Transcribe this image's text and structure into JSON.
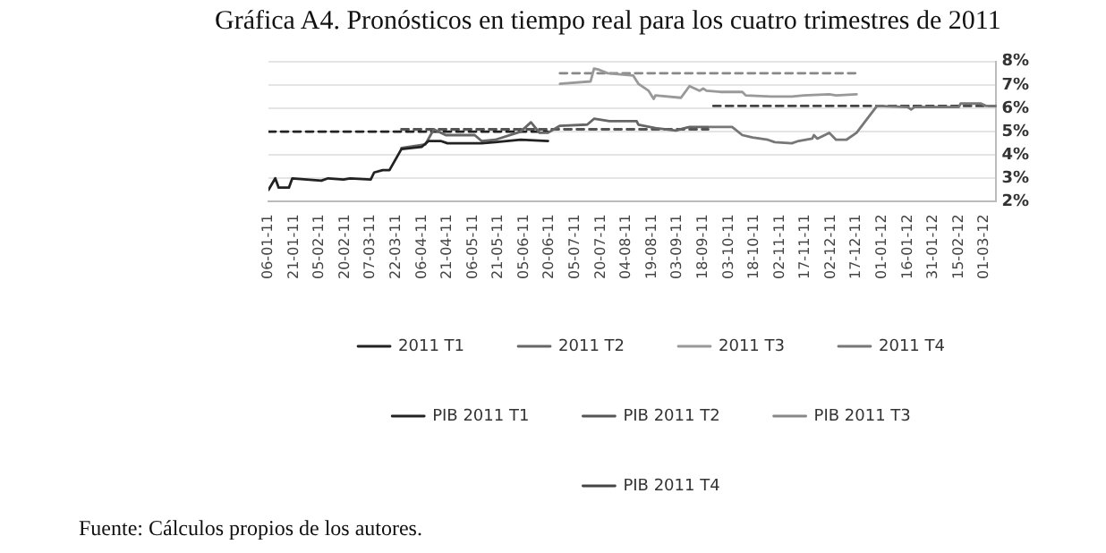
{
  "chart_data": {
    "type": "line",
    "title": "Gráfica A4. Pronósticos en tiempo real para los cuatro trimestres de 2011",
    "annotations": [
      "Fuente: Cálculos propios de los autores."
    ],
    "grid": "y",
    "legend": "bottom",
    "marker": "none",
    "xlim": [
      "2011-01-06",
      "2012-03-08"
    ],
    "xticks": [
      {
        "value": "2011-01-06",
        "label": "06-01-11"
      },
      {
        "value": "2011-01-21",
        "label": "21-01-11"
      },
      {
        "value": "2011-02-05",
        "label": "05-02-11"
      },
      {
        "value": "2011-02-20",
        "label": "20-02-11"
      },
      {
        "value": "2011-03-07",
        "label": "07-03-11"
      },
      {
        "value": "2011-03-22",
        "label": "22-03-11"
      },
      {
        "value": "2011-04-06",
        "label": "06-04-11"
      },
      {
        "value": "2011-04-21",
        "label": "21-04-11"
      },
      {
        "value": "2011-05-06",
        "label": "06-05-11"
      },
      {
        "value": "2011-05-21",
        "label": "21-05-11"
      },
      {
        "value": "2011-06-05",
        "label": "05-06-11"
      },
      {
        "value": "2011-06-20",
        "label": "20-06-11"
      },
      {
        "value": "2011-07-05",
        "label": "05-07-11"
      },
      {
        "value": "2011-07-20",
        "label": "20-07-11"
      },
      {
        "value": "2011-08-04",
        "label": "04-08-11"
      },
      {
        "value": "2011-08-19",
        "label": "19-08-11"
      },
      {
        "value": "2011-09-03",
        "label": "03-09-11"
      },
      {
        "value": "2011-09-18",
        "label": "18-09-11"
      },
      {
        "value": "2011-10-03",
        "label": "03-10-11"
      },
      {
        "value": "2011-10-18",
        "label": "18-10-11"
      },
      {
        "value": "2011-11-02",
        "label": "02-11-11"
      },
      {
        "value": "2011-11-17",
        "label": "17-11-11"
      },
      {
        "value": "2011-12-02",
        "label": "02-12-11"
      },
      {
        "value": "2011-12-17",
        "label": "17-12-11"
      },
      {
        "value": "2012-01-01",
        "label": "01-01-12"
      },
      {
        "value": "2012-01-16",
        "label": "16-01-12"
      },
      {
        "value": "2012-01-31",
        "label": "31-01-12"
      },
      {
        "value": "2012-02-15",
        "label": "15-02-12"
      },
      {
        "value": "2012-03-01",
        "label": "01-03-12"
      }
    ],
    "ylim": [
      2,
      8
    ],
    "yticks": [
      {
        "value": 2,
        "label": "2%"
      },
      {
        "value": 3,
        "label": "3%"
      },
      {
        "value": 4,
        "label": "4%"
      },
      {
        "value": 5,
        "label": "5%"
      },
      {
        "value": 6,
        "label": "6%"
      },
      {
        "value": 7,
        "label": "7%"
      },
      {
        "value": 8,
        "label": "8%"
      }
    ],
    "series": [
      {
        "name": "2011 T1",
        "color": "#222222",
        "x": [
          "2011-01-06",
          "2011-01-10",
          "2011-01-12",
          "2011-01-18",
          "2011-01-20",
          "2011-02-06",
          "2011-02-10",
          "2011-02-19",
          "2011-02-23",
          "2011-03-07",
          "2011-03-09",
          "2011-03-14",
          "2011-03-18",
          "2011-03-25",
          "2011-04-06",
          "2011-04-10",
          "2011-04-17",
          "2011-04-21",
          "2011-05-11",
          "2011-05-19",
          "2011-06-03",
          "2011-06-19"
        ],
        "values": [
          2.5,
          3.0,
          2.6,
          2.6,
          3.0,
          2.9,
          3.0,
          2.95,
          3.0,
          2.95,
          3.25,
          3.35,
          3.35,
          4.25,
          4.35,
          4.6,
          4.6,
          4.5,
          4.5,
          4.55,
          4.65,
          4.6
        ]
      },
      {
        "name": "2011 T2",
        "color": "#666666",
        "x": [
          "2011-03-25",
          "2011-04-08",
          "2011-04-13",
          "2011-04-20",
          "2011-05-07",
          "2011-05-11",
          "2011-05-19",
          "2011-06-03",
          "2011-06-09",
          "2011-06-14",
          "2011-06-19",
          "2011-06-26",
          "2011-07-12",
          "2011-07-16",
          "2011-07-25",
          "2011-08-10",
          "2011-08-11",
          "2011-08-21",
          "2011-09-02",
          "2011-09-10",
          "2011-09-21"
        ],
        "values": [
          4.3,
          4.45,
          5.1,
          4.85,
          4.85,
          4.6,
          4.65,
          5.0,
          5.4,
          4.95,
          4.95,
          5.25,
          5.3,
          5.55,
          5.45,
          5.45,
          5.3,
          5.15,
          5.05,
          5.2,
          5.2
        ]
      },
      {
        "name": "2011 T3",
        "color": "#999999",
        "x": [
          "2011-06-26",
          "2011-07-14",
          "2011-07-16",
          "2011-07-19",
          "2011-07-24",
          "2011-08-08",
          "2011-08-11",
          "2011-08-17",
          "2011-08-20",
          "2011-08-21",
          "2011-09-05",
          "2011-09-10",
          "2011-09-16",
          "2011-09-18",
          "2011-09-20",
          "2011-09-28",
          "2011-10-11",
          "2011-10-13",
          "2011-10-28",
          "2011-11-09",
          "2011-11-16",
          "2011-12-01",
          "2011-12-05",
          "2011-12-17"
        ],
        "values": [
          7.05,
          7.15,
          7.7,
          7.65,
          7.5,
          7.4,
          7.05,
          6.75,
          6.4,
          6.55,
          6.45,
          6.95,
          6.75,
          6.85,
          6.75,
          6.7,
          6.7,
          6.55,
          6.5,
          6.5,
          6.55,
          6.6,
          6.55,
          6.6
        ]
      },
      {
        "name": "2011 T4",
        "color": "#777777",
        "x": [
          "2011-09-22",
          "2011-10-05",
          "2011-10-11",
          "2011-10-17",
          "2011-10-26",
          "2011-10-30",
          "2011-11-09",
          "2011-11-13",
          "2011-11-21",
          "2011-11-22",
          "2011-11-24",
          "2011-12-01",
          "2011-12-05",
          "2011-12-11",
          "2011-12-17",
          "2011-12-29",
          "2012-01-16",
          "2012-01-18",
          "2012-01-20",
          "2012-02-15",
          "2012-02-16",
          "2012-02-28",
          "2012-03-02",
          "2012-03-08"
        ],
        "values": [
          5.2,
          5.2,
          4.85,
          4.75,
          4.65,
          4.55,
          4.5,
          4.6,
          4.7,
          4.85,
          4.7,
          4.95,
          4.65,
          4.65,
          4.95,
          6.1,
          6.05,
          5.95,
          6.05,
          6.05,
          6.2,
          6.2,
          6.1,
          6.1
        ]
      },
      {
        "name": "PIB 2011 T1",
        "color": "#222222",
        "line_style": "dashed",
        "x": [
          "2011-01-06",
          "2011-06-19"
        ],
        "values": [
          5.0,
          5.0
        ]
      },
      {
        "name": "PIB 2011 T2",
        "color": "#555555",
        "line_style": "dashed",
        "x": [
          "2011-03-25",
          "2011-09-21"
        ],
        "values": [
          5.1,
          5.1
        ]
      },
      {
        "name": "PIB 2011 T3",
        "color": "#888888",
        "line_style": "dashed",
        "x": [
          "2011-06-26",
          "2011-12-19"
        ],
        "values": [
          7.5,
          7.5
        ]
      },
      {
        "name": "PIB 2011 T4",
        "color": "#444444",
        "line_style": "dashed",
        "x": [
          "2011-09-24",
          "2012-03-08"
        ],
        "values": [
          6.1,
          6.1
        ]
      }
    ]
  }
}
